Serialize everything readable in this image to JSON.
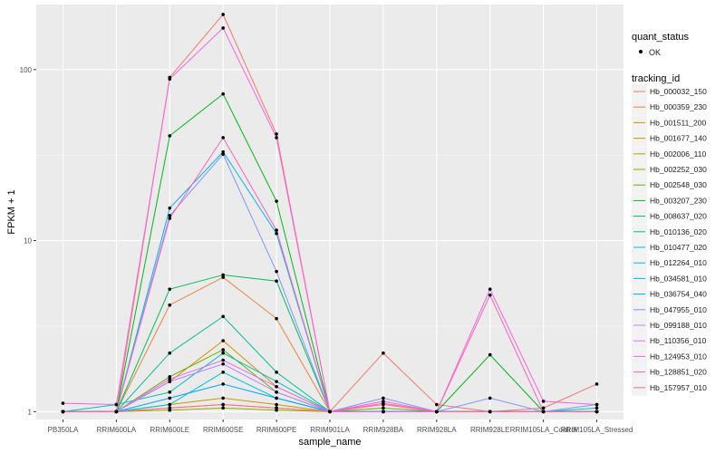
{
  "chart_data": {
    "type": "line",
    "xlabel": "sample_name",
    "ylabel": "FPKM + 1",
    "y_scale": "log10",
    "ylim": [
      0.9,
      240
    ],
    "y_ticks": [
      1,
      10,
      100
    ],
    "y_tick_labels": [
      "1",
      "10",
      "100"
    ],
    "grid": true,
    "background": "#ebebeb",
    "categories": [
      "PB350LA",
      "RRIM600LA",
      "RRIM600LE",
      "RRIM600SE",
      "RRIM600PE",
      "RRIM901LA",
      "RRIM928BA",
      "RRIM928LA",
      "RRIM928LE",
      "RRIM105LA_Control",
      "RRIM105LA_Stressed"
    ],
    "point_legend": {
      "title": "quant_status",
      "entries": [
        "OK"
      ]
    },
    "legend": {
      "title": "tracking_id",
      "placement": "right"
    },
    "series": [
      {
        "name": "Hb_000032_150",
        "color": "#F8766D",
        "values": [
          1,
          1,
          90,
          210,
          42,
          1,
          2.2,
          1.1,
          1,
          1.05,
          1.45
        ]
      },
      {
        "name": "Hb_000359_230",
        "color": "#EC8239",
        "values": [
          1,
          1,
          4.2,
          6.1,
          3.5,
          1,
          1,
          1,
          1,
          1,
          1
        ]
      },
      {
        "name": "Hb_001511_200",
        "color": "#DB8E00",
        "values": [
          1,
          1,
          1.5,
          2.6,
          1.4,
          1,
          1,
          1,
          1,
          1,
          1
        ]
      },
      {
        "name": "Hb_001677_140",
        "color": "#C79800",
        "values": [
          1,
          1,
          1.1,
          1.2,
          1.1,
          1,
          1,
          1,
          1,
          1,
          1
        ]
      },
      {
        "name": "Hb_002006_110",
        "color": "#AEA200",
        "values": [
          1,
          1,
          1.05,
          1.1,
          1.05,
          1,
          1,
          1,
          1,
          1,
          1
        ]
      },
      {
        "name": "Hb_002252_030",
        "color": "#8FAA00",
        "values": [
          1,
          1,
          1.02,
          1.05,
          1.02,
          1,
          1,
          1,
          1,
          1,
          1
        ]
      },
      {
        "name": "Hb_002548_030",
        "color": "#64B200",
        "values": [
          1,
          1,
          1.6,
          2.3,
          1.3,
          1,
          1.05,
          1,
          1,
          1,
          1
        ]
      },
      {
        "name": "Hb_003207_230",
        "color": "#00B81B",
        "values": [
          1,
          1,
          41,
          72,
          17,
          1,
          1,
          1,
          2.15,
          1,
          1
        ]
      },
      {
        "name": "Hb_008637_020",
        "color": "#00BD5C",
        "values": [
          1,
          1,
          5.2,
          6.3,
          5.8,
          1,
          1,
          1,
          1,
          1,
          1
        ]
      },
      {
        "name": "Hb_010136_020",
        "color": "#00C08E",
        "values": [
          1,
          1,
          2.2,
          3.6,
          1.7,
          1,
          1,
          1,
          1,
          1,
          1
        ]
      },
      {
        "name": "Hb_010477_020",
        "color": "#00C1B7",
        "values": [
          1,
          1.1,
          1.3,
          2.2,
          1.5,
          1,
          1,
          1,
          1,
          1,
          1.05
        ]
      },
      {
        "name": "Hb_012264_010",
        "color": "#00BDDC",
        "values": [
          1,
          1,
          1.1,
          1.7,
          1.2,
          1,
          1,
          1,
          1,
          1,
          1
        ]
      },
      {
        "name": "Hb_034581_010",
        "color": "#00B4EF",
        "values": [
          1,
          1,
          15.5,
          33,
          11,
          1,
          1,
          1,
          1,
          1,
          1
        ]
      },
      {
        "name": "Hb_036754_040",
        "color": "#00A5FF",
        "values": [
          1,
          1,
          1.2,
          1.45,
          1.2,
          1,
          1,
          1,
          1,
          1,
          1
        ]
      },
      {
        "name": "Hb_047955_010",
        "color": "#7F96FF",
        "values": [
          1,
          1,
          14,
          32,
          6.6,
          1,
          1.2,
          1,
          1.2,
          1,
          1.1
        ]
      },
      {
        "name": "Hb_099188_010",
        "color": "#BC81FF",
        "values": [
          1,
          1,
          1.5,
          1.9,
          1.3,
          1,
          1,
          1,
          1,
          1,
          1
        ]
      },
      {
        "name": "Hb_110356_010",
        "color": "#E26EF7",
        "values": [
          1,
          1,
          1.55,
          2.0,
          1.4,
          1,
          1,
          1,
          1,
          1,
          1
        ]
      },
      {
        "name": "Hb_124953_010",
        "color": "#F863DF",
        "values": [
          1.12,
          1.1,
          88,
          175,
          40,
          1,
          1.15,
          1,
          5.2,
          1.15,
          1.1
        ]
      },
      {
        "name": "Hb_128851_020",
        "color": "#FF62BC",
        "values": [
          1,
          1,
          13.5,
          40,
          11.5,
          1,
          1.1,
          1,
          4.8,
          1,
          1
        ]
      },
      {
        "name": "Hb_157957_010",
        "color": "#FF6C91",
        "values": [
          1,
          1,
          1.05,
          1.1,
          1.05,
          1,
          1.12,
          1,
          1,
          1,
          1
        ]
      }
    ]
  }
}
